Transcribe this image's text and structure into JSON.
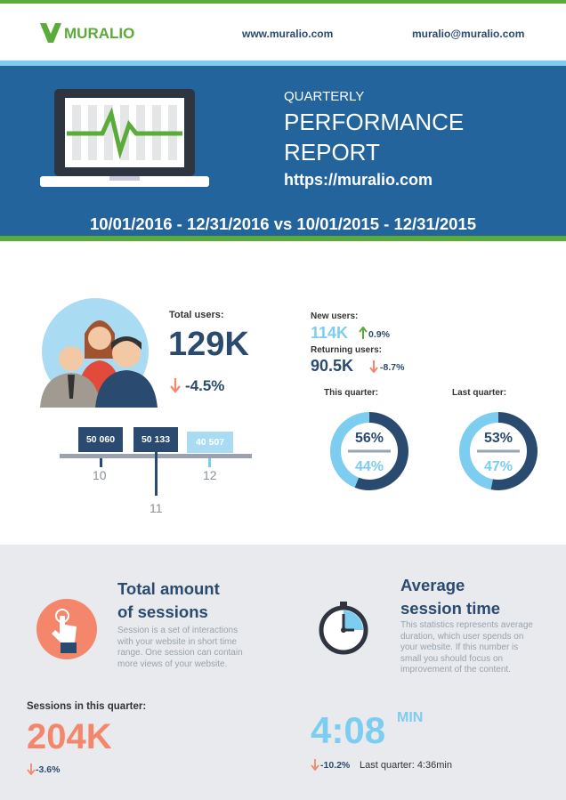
{
  "header": {
    "brand": "MURALIO",
    "website": "www.muralio.com",
    "email": "muralio@muralio.com"
  },
  "banner": {
    "kicker": "QUARTERLY",
    "title_lines": [
      "PERFORMANCE",
      "REPORT"
    ],
    "url": "https://muralio.com",
    "date_range": "10/01/2016 - 12/31/2016 vs 10/01/2015 - 12/31/2015"
  },
  "users": {
    "total_label": "Total users:",
    "total": "129K",
    "total_change": "-4.5%",
    "new_label": "New users:",
    "new": "114K",
    "new_change": "0.9%",
    "returning_label": "Returning users:",
    "returning": "90.5K",
    "returning_change": "-8.7%",
    "months": [
      {
        "label": "10",
        "value": "50 060"
      },
      {
        "label": "11",
        "value": "50 133"
      },
      {
        "label": "12",
        "value": "40 507"
      }
    ]
  },
  "donuts": [
    {
      "title": "This quarter:",
      "values": [
        56,
        44
      ],
      "value_labels": [
        "56%",
        "44%"
      ],
      "colors": [
        "#2b4a6f",
        "#7dcdf0"
      ]
    },
    {
      "title": "Last quarter:",
      "values": [
        53,
        47
      ],
      "value_labels": [
        "53%",
        "47%"
      ],
      "colors": [
        "#2b4a6f",
        "#7dcdf0"
      ]
    }
  ],
  "sessions": {
    "title_lines": [
      "Total amount",
      "of sessions"
    ],
    "description": "Session is a set of interactions with your website in short time range. One session can contain more views of your website.",
    "count_label": "Sessions in this quarter:",
    "count": "204K",
    "change": "-3.6%"
  },
  "session_time": {
    "title_lines": [
      "Average",
      "session time"
    ],
    "description": "This statistics represents average duration, which user spends on your website. If this number is small you should focus on improvement of the content.",
    "value": "4:08",
    "unit": "MIN",
    "change": "-10.2%",
    "last_quarter": "Last quarter: 4:36min"
  }
}
